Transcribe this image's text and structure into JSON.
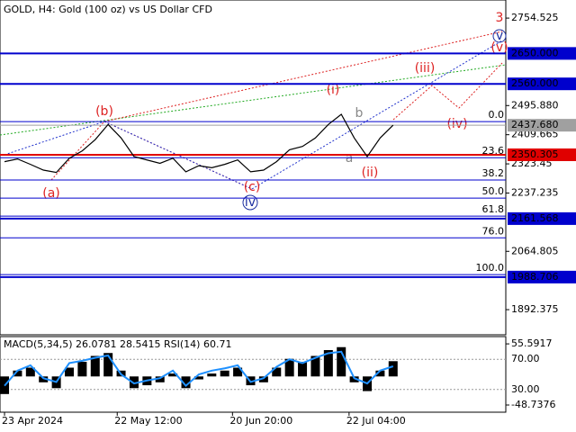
{
  "chart_data": [
    {
      "type": "line",
      "title": "GOLD, H4:  Gold (100 oz) vs US Dollar CFD",
      "x": [
        0,
        1,
        2,
        3,
        4,
        5,
        6,
        7,
        8,
        9,
        10,
        11,
        12,
        13,
        14,
        15,
        16,
        17,
        18,
        19,
        20,
        21,
        22,
        23,
        24,
        25,
        26,
        27,
        28,
        29,
        30
      ],
      "xlim": [
        -0.35,
        38.7
      ],
      "xticks": [
        {
          "value": 0,
          "label": "23 Apr 2024"
        },
        {
          "value": 8.7,
          "label": "22 May 12:00"
        },
        {
          "value": 17.6,
          "label": "20 Jun 20:00"
        },
        {
          "value": 26.6,
          "label": "22 Jul 04:00"
        }
      ],
      "series": [
        {
          "color": "#000000",
          "values": [
            2330,
            2338,
            2322,
            2305,
            2298,
            2340,
            2362,
            2395,
            2440,
            2400,
            2345,
            2335,
            2325,
            2340,
            2300,
            2318,
            2312,
            2322,
            2335,
            2300,
            2305,
            2330,
            2365,
            2375,
            2400,
            2440,
            2470,
            2400,
            2345,
            2400,
            2438
          ]
        }
      ],
      "ylim": [
        1818,
        2808
      ],
      "yticks": [
        {
          "value": 2754.525,
          "label": "2754.525"
        },
        {
          "value": 2495.88,
          "label": "2495.880"
        },
        {
          "value": 2409.665,
          "label": "2409.665"
        },
        2323.45,
        2237.235,
        2064.805,
        1892.375
      ],
      "levels": {
        "values": [
          2650,
          2560,
          2437.68,
          2350.305,
          2161.568,
          1988.706
        ],
        "labels": [
          "2650.000",
          "2560.000",
          "2437.680",
          "2350.305",
          "2161.568",
          "1988.706"
        ],
        "colors": [
          "#0000cd",
          "#0000cd",
          "#a0a0a0",
          "#e00000",
          "#0000cd",
          "#0000cd"
        ]
      },
      "fib_levels": {
        "values": [
          2448.5,
          2341.7,
          2275.6,
          2222.2,
          2168.9,
          2104.6,
          1996
        ],
        "labels": [
          "0.0",
          "23.6",
          "38.2",
          "50.0",
          "61.8",
          "76.0",
          "100.0"
        ],
        "color": "#0000cd"
      },
      "wave_labels": [
        "3",
        "v",
        "(v)",
        "(iii)",
        "(iv)",
        "(i)",
        "b",
        "a",
        "(ii)",
        "(b)",
        "(a)",
        "(c)",
        "iv"
      ]
    },
    {
      "type": "macd",
      "title": "MACD(5,34,5) 26.0781 28.5415 RSI(14) 60.71",
      "x": [
        0,
        1,
        2,
        3,
        4,
        5,
        6,
        7,
        8,
        9,
        10,
        11,
        12,
        13,
        14,
        15,
        16,
        17,
        18,
        19,
        20,
        21,
        22,
        23,
        24,
        25,
        26,
        27,
        28,
        29,
        30
      ],
      "series": [
        {
          "name": "MACD",
          "color": "#000000",
          "values": [
            -30,
            10,
            15,
            -10,
            -20,
            15,
            25,
            35,
            40,
            10,
            -20,
            -15,
            -10,
            5,
            -20,
            -5,
            5,
            10,
            15,
            -15,
            -10,
            15,
            30,
            25,
            35,
            45,
            50,
            -10,
            -25,
            10,
            26.0781
          ]
        },
        {
          "name": "RSI",
          "color": "#1e90ff",
          "axis": "y2",
          "values": [
            35,
            55,
            62,
            45,
            40,
            65,
            68,
            72,
            75,
            50,
            38,
            42,
            45,
            55,
            35,
            50,
            55,
            58,
            62,
            40,
            45,
            60,
            70,
            65,
            72,
            78,
            80,
            45,
            38,
            55,
            60.71
          ]
        }
      ],
      "ylim": [
        -61,
        68
      ],
      "yticks": [
        55.5917,
        -48.7376
      ],
      "y2lim": [
        0,
        100
      ],
      "y2ticks": [
        {
          "value": 70,
          "label": "70.00"
        },
        {
          "value": 30,
          "label": "30.00"
        }
      ]
    }
  ]
}
